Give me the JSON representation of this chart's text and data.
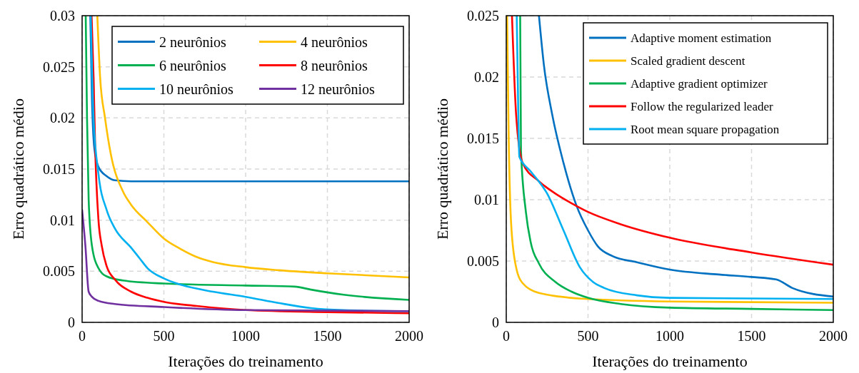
{
  "chart_data": [
    {
      "type": "line",
      "xlabel": "Iterações do treinamento",
      "ylabel": "Erro quadrático médio",
      "xlim": [
        0,
        2000
      ],
      "xticks": [
        0,
        500,
        1000,
        1500,
        2000
      ],
      "ylim": [
        0,
        0.03
      ],
      "yticks": [
        0,
        0.005,
        0.01,
        0.015,
        0.02,
        0.025,
        0.03
      ],
      "grid": true,
      "legend": "top right",
      "marker": "none",
      "line_style": "solid",
      "series": [
        {
          "name": "2 neurônios",
          "color": "#0070c0",
          "x": [
            50,
            60,
            75,
            100,
            150,
            200,
            300,
            2000
          ],
          "values": [
            0.03,
            0.022,
            0.017,
            0.0152,
            0.0143,
            0.0139,
            0.0138,
            0.0138
          ]
        },
        {
          "name": "4 neurônios",
          "color": "#ffc000",
          "x": [
            93,
            110,
            140,
            175,
            250,
            300,
            400,
            500,
            600,
            700,
            800,
            1000,
            1200,
            1500,
            2000
          ],
          "values": [
            0.03,
            0.024,
            0.02,
            0.0165,
            0.0128,
            0.0115,
            0.0098,
            0.0082,
            0.0072,
            0.0064,
            0.0059,
            0.0054,
            0.0051,
            0.0048,
            0.0044
          ]
        },
        {
          "name": "6 neurônios",
          "color": "#00b050",
          "x": [
            22,
            30,
            40,
            60,
            100,
            150,
            250,
            500,
            1000,
            1300,
            1400,
            1600,
            2000
          ],
          "values": [
            0.03,
            0.02,
            0.012,
            0.0075,
            0.0053,
            0.0045,
            0.0041,
            0.0038,
            0.0036,
            0.0035,
            0.0032,
            0.0027,
            0.0022
          ]
        },
        {
          "name": "8 neurônios",
          "color": "#ff0000",
          "x": [
            58,
            70,
            80,
            100,
            120,
            150,
            200,
            300,
            400,
            500,
            700,
            1000,
            1500,
            2000
          ],
          "values": [
            0.03,
            0.024,
            0.017,
            0.01,
            0.0075,
            0.0055,
            0.0042,
            0.003,
            0.0024,
            0.002,
            0.0016,
            0.0012,
            0.001,
            0.0009
          ]
        },
        {
          "name": "10 neurônios",
          "color": "#00b0f0",
          "x": [
            53,
            70,
            100,
            150,
            200,
            300,
            350,
            400,
            500,
            600,
            800,
            1000,
            1200,
            1400,
            1600,
            2000
          ],
          "values": [
            0.03,
            0.02,
            0.0145,
            0.011,
            0.0092,
            0.0073,
            0.0063,
            0.0053,
            0.0043,
            0.0037,
            0.003,
            0.0025,
            0.0019,
            0.0014,
            0.0012,
            0.0011
          ]
        },
        {
          "name": "12 neurônios",
          "color": "#7030a0",
          "x": [
            0,
            20,
            40,
            60,
            100,
            200,
            500,
            1000,
            2000
          ],
          "values": [
            0.011,
            0.0075,
            0.003,
            0.0025,
            0.0021,
            0.0018,
            0.0015,
            0.0012,
            0.0011
          ]
        }
      ]
    },
    {
      "type": "line",
      "xlabel": "Iterações do treinamento",
      "ylabel": "Erro quadrático médio",
      "xlim": [
        0,
        2000
      ],
      "xticks": [
        0,
        500,
        1000,
        1500,
        2000
      ],
      "ylim": [
        0,
        0.025
      ],
      "yticks": [
        0,
        0.005,
        0.01,
        0.015,
        0.02,
        0.025
      ],
      "grid": true,
      "legend": "top right",
      "marker": "none",
      "line_style": "solid",
      "series": [
        {
          "name": "Adaptive moment estimation",
          "color": "#0070c0",
          "x": [
            200,
            230,
            280,
            350,
            430,
            500,
            560,
            650,
            800,
            1000,
            1300,
            1500,
            1650,
            1750,
            2000
          ],
          "values": [
            0.025,
            0.021,
            0.017,
            0.013,
            0.0095,
            0.0075,
            0.0062,
            0.0054,
            0.0049,
            0.0043,
            0.0039,
            0.0037,
            0.0035,
            0.0028,
            0.0021
          ]
        },
        {
          "name": "Scaled gradient descent",
          "color": "#ffc000",
          "x": [
            5,
            15,
            30,
            60,
            100,
            200,
            500,
            1000,
            2000
          ],
          "values": [
            0.025,
            0.015,
            0.008,
            0.0045,
            0.0032,
            0.0024,
            0.0019,
            0.0017,
            0.0016
          ]
        },
        {
          "name": "Adaptive gradient optimizer",
          "color": "#00b050",
          "x": [
            85,
            90,
            120,
            150,
            200,
            300,
            400,
            500,
            700,
            1000,
            1500,
            2000
          ],
          "values": [
            0.025,
            0.014,
            0.009,
            0.0065,
            0.0048,
            0.0033,
            0.0025,
            0.002,
            0.0015,
            0.0012,
            0.0011,
            0.001
          ]
        },
        {
          "name": "Follow the regularized leader",
          "color": "#ff0000",
          "x": [
            35,
            60,
            100,
            200,
            300,
            400,
            500,
            700,
            1000,
            1500,
            2000
          ],
          "values": [
            0.025,
            0.017,
            0.013,
            0.0115,
            0.0105,
            0.0097,
            0.009,
            0.008,
            0.0069,
            0.0057,
            0.0047
          ]
        },
        {
          "name": "Root mean square propagation",
          "color": "#00b0f0",
          "x": [
            64,
            70,
            80,
            150,
            250,
            350,
            450,
            530,
            600,
            800,
            1000,
            2000
          ],
          "values": [
            0.025,
            0.02,
            0.0135,
            0.0123,
            0.0105,
            0.0075,
            0.0045,
            0.0033,
            0.0028,
            0.0022,
            0.002,
            0.0019
          ]
        }
      ]
    }
  ]
}
